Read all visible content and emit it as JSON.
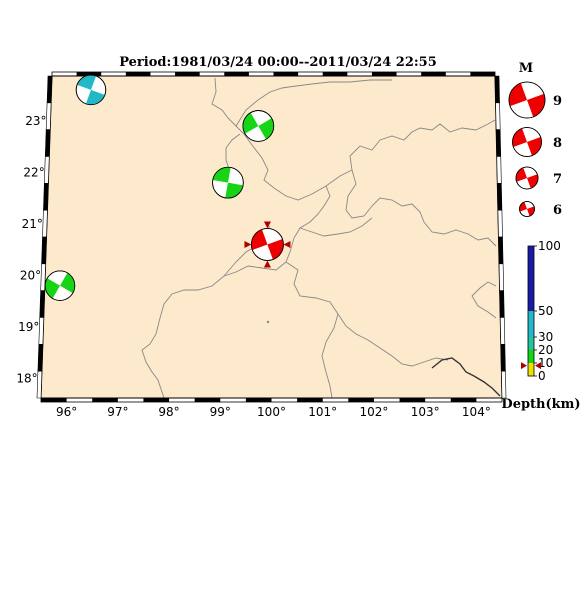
{
  "title": "Period:1981/03/24 00:00--2011/03/24 22:55",
  "map": {
    "lon_ticks": [
      "96°",
      "97°",
      "98°",
      "99°",
      "100°",
      "101°",
      "102°",
      "103°",
      "104°"
    ],
    "lat_ticks": [
      "18°",
      "19°",
      "20°",
      "21°",
      "22°",
      "23°"
    ],
    "colors": {
      "land": "#fde9cc",
      "border": "#888888",
      "coast": "#333333"
    }
  },
  "events": [
    {
      "lon": 96.3,
      "lat": 23.6,
      "mag": 6.8,
      "depth": 30,
      "color": "#22b8c8"
    },
    {
      "lon": 99.7,
      "lat": 22.9,
      "mag": 6.9,
      "depth": 10,
      "color": "#17d417"
    },
    {
      "lon": 99.1,
      "lat": 21.8,
      "mag": 6.9,
      "depth": 10,
      "color": "#17d417"
    },
    {
      "lon": 95.8,
      "lat": 19.8,
      "mag": 6.8,
      "depth": 10,
      "color": "#17d417"
    },
    {
      "lon": 99.9,
      "lat": 20.6,
      "mag": 7.0,
      "depth": 8,
      "color": "#ee0000"
    }
  ],
  "legend": {
    "mag_title": "M",
    "magnitudes": [
      "9",
      "8",
      "7",
      "6"
    ],
    "depth_title": "Depth(km)",
    "depth_ticks": [
      "100",
      "50",
      "30",
      "20",
      "10",
      "0"
    ],
    "depth_colors": [
      "#1a1aa8",
      "#22b8c8",
      "#17d417",
      "#f0e000"
    ]
  }
}
